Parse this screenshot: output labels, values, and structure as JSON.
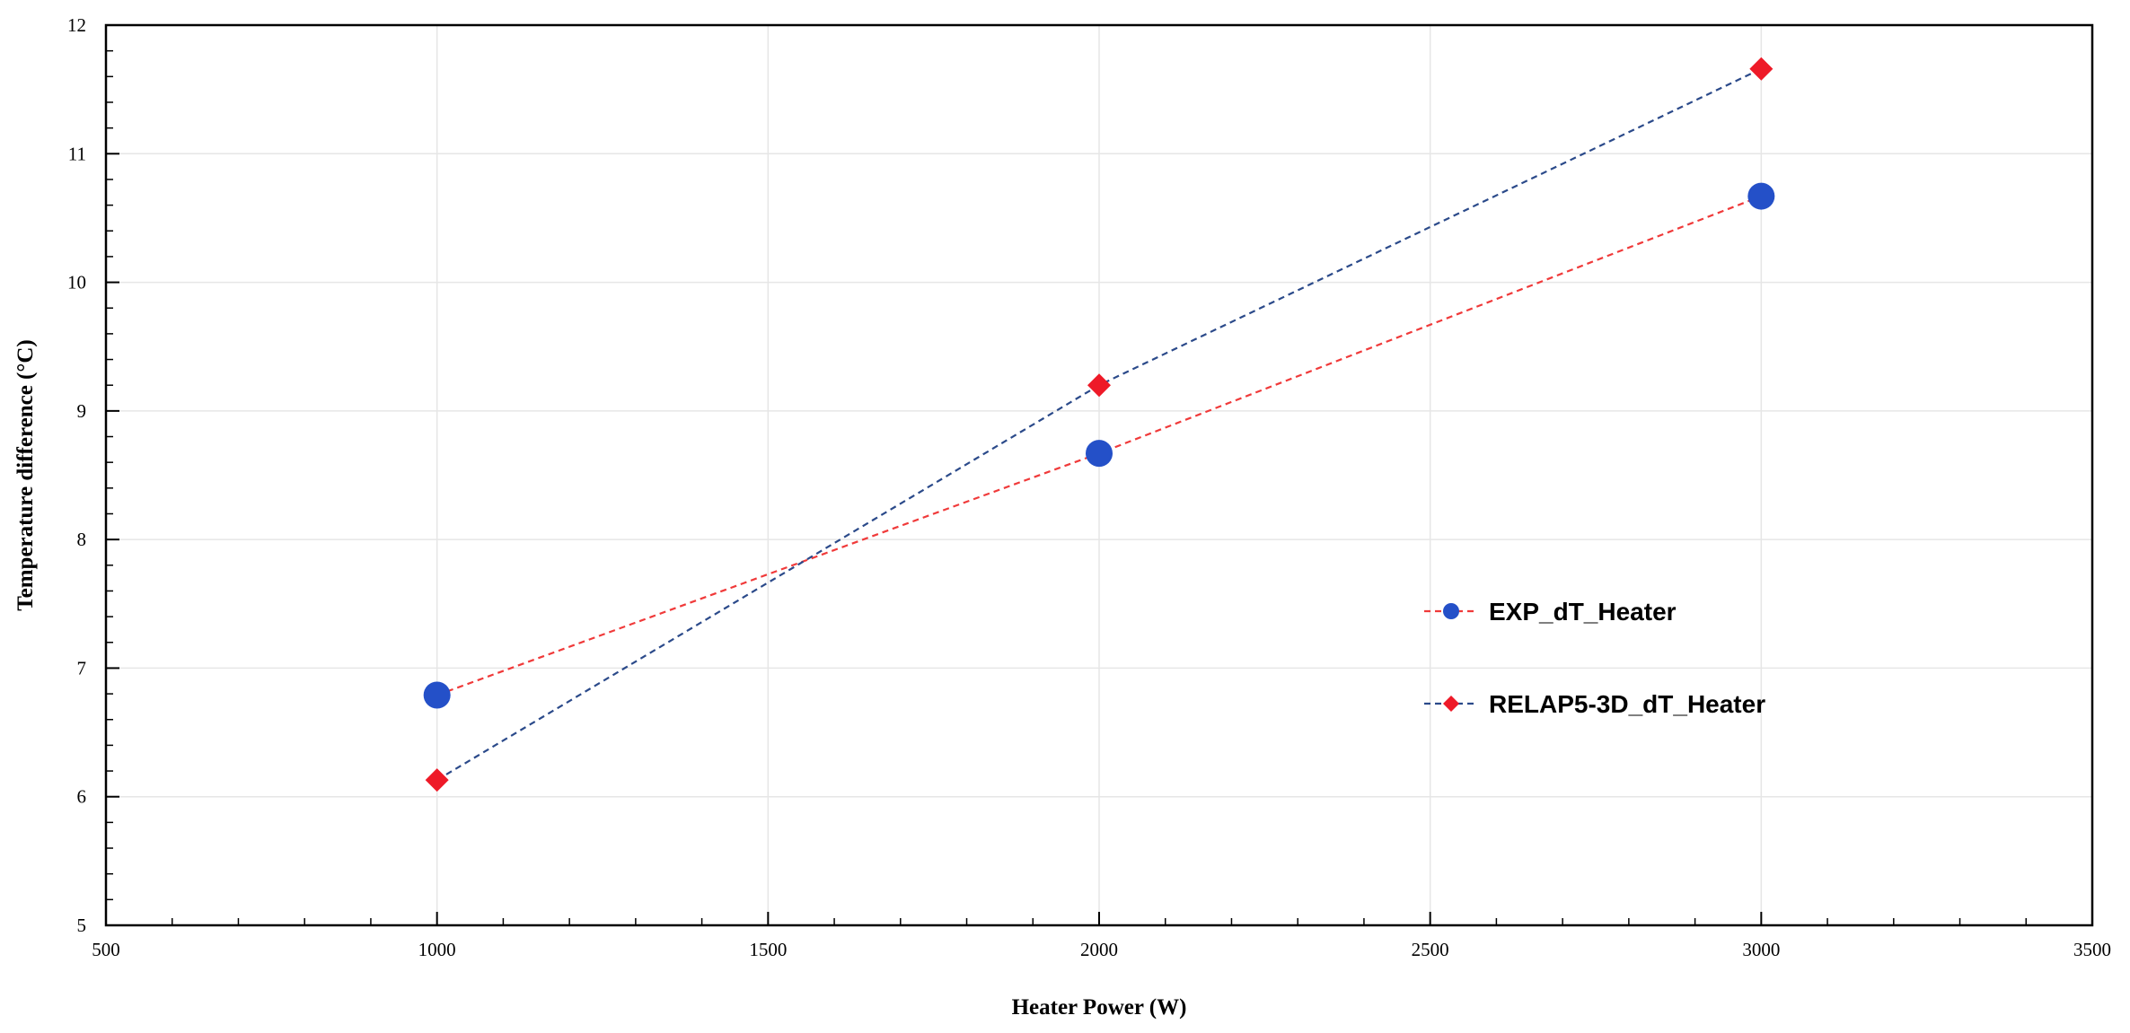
{
  "chart_data": {
    "type": "scatter",
    "title": "",
    "xlabel": "Heater Power (W)",
    "ylabel": "Temperature difference (°C)",
    "xlim": [
      500,
      3500
    ],
    "ylim": [
      5,
      12
    ],
    "xticks": [
      500,
      1000,
      1500,
      2000,
      2500,
      3000,
      3500
    ],
    "yticks": [
      5,
      6,
      7,
      8,
      9,
      10,
      11,
      12
    ],
    "grid": true,
    "legend_position": "right-middle",
    "series": [
      {
        "name": "EXP_dT_Heater",
        "marker": "circle",
        "marker_color": "#2450c8",
        "line_color": "#f03a3a",
        "line_style": "dashed",
        "x": [
          1000,
          2000,
          3000
        ],
        "y": [
          6.79,
          8.67,
          10.67
        ]
      },
      {
        "name": "RELAP5-3D_dT_Heater",
        "marker": "diamond",
        "marker_color": "#ee1a28",
        "line_color": "#2b4a8a",
        "line_style": "dashed",
        "x": [
          1000,
          2000,
          3000
        ],
        "y": [
          6.13,
          9.2,
          11.66
        ]
      }
    ]
  }
}
